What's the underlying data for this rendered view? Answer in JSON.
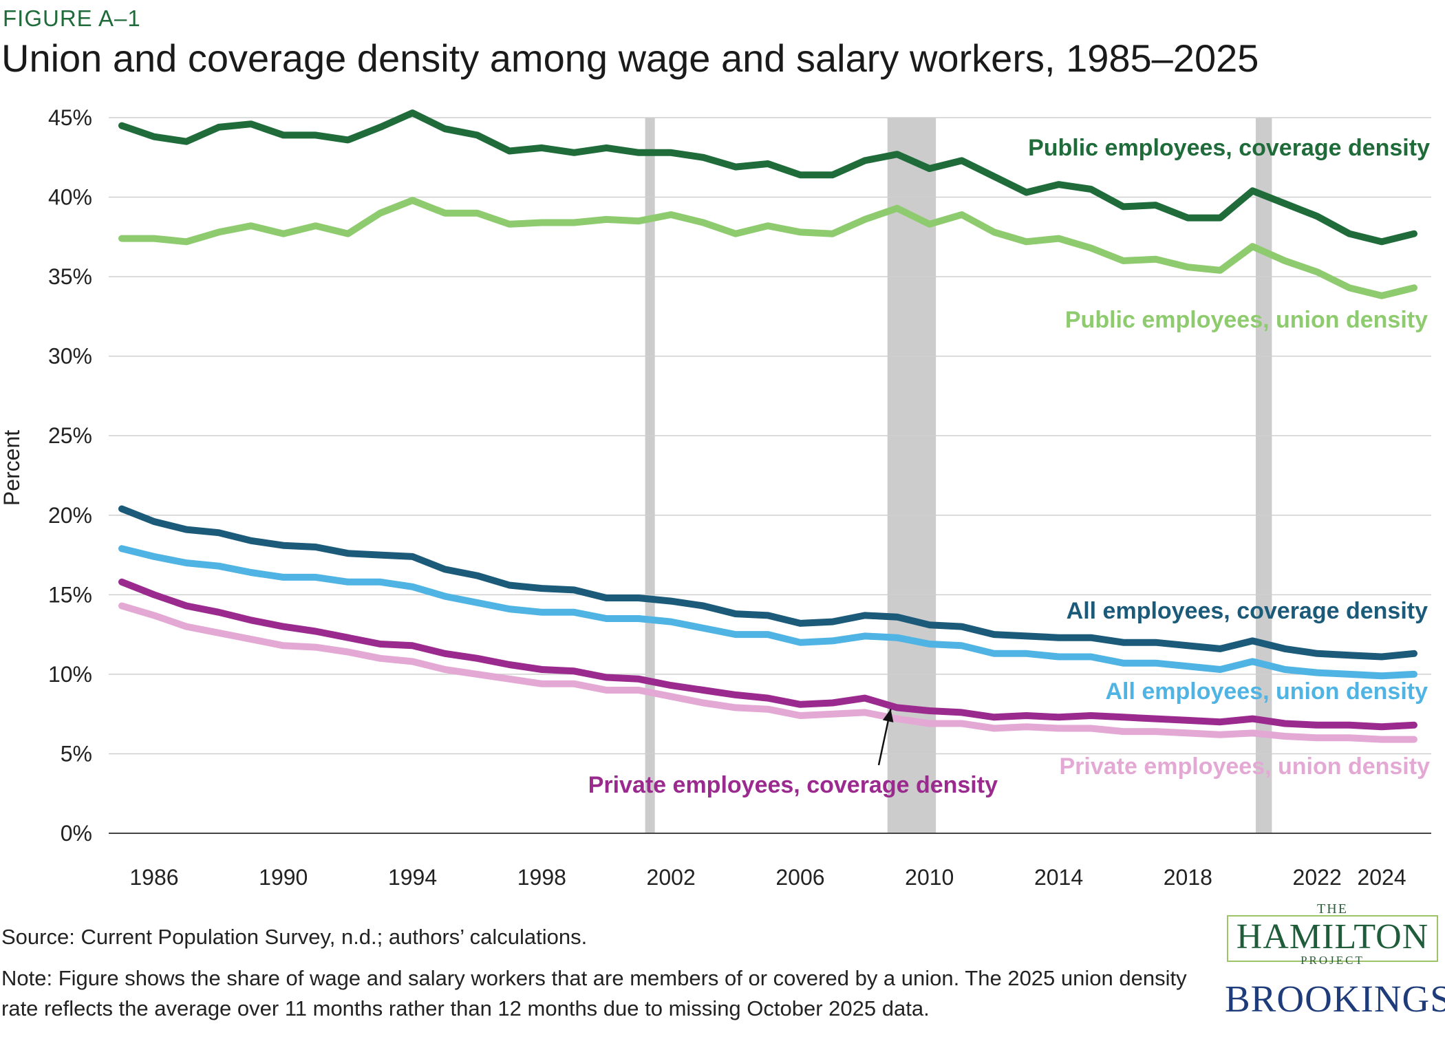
{
  "figure_label": "FIGURE A–1",
  "title": "Union and coverage density among wage and salary workers, 1985–2025",
  "source": "Source: Current Population Survey, n.d.; authors’ calculations.",
  "note": "Note: Figure shows the share of wage and salary workers that are members of or covered by a union. The 2025 union density rate reflects the average over 11 months rather than 12 months due to missing October 2025 data.",
  "logos": {
    "hamilton_the": "THE",
    "hamilton_name": "HAMILTON",
    "hamilton_project": "PROJECT",
    "brookings": "BROOKINGS"
  },
  "chart_data": {
    "type": "line",
    "ylabel": "Percent",
    "ylim": [
      0,
      45
    ],
    "yticks": [
      0,
      5,
      10,
      15,
      20,
      25,
      30,
      35,
      40,
      45
    ],
    "ytick_labels": [
      "0%",
      "5%",
      "10%",
      "15%",
      "20%",
      "25%",
      "30%",
      "35%",
      "40%",
      "45%"
    ],
    "xlim": [
      1985,
      2025
    ],
    "xticks": [
      1986,
      1990,
      1994,
      1998,
      2002,
      2006,
      2010,
      2014,
      2018,
      2022,
      2024
    ],
    "grid": "horizontal",
    "x": [
      1985,
      1986,
      1987,
      1988,
      1989,
      1990,
      1991,
      1992,
      1993,
      1994,
      1995,
      1996,
      1997,
      1998,
      1999,
      2000,
      2001,
      2002,
      2003,
      2004,
      2005,
      2006,
      2007,
      2008,
      2009,
      2010,
      2011,
      2012,
      2013,
      2014,
      2015,
      2016,
      2017,
      2018,
      2019,
      2020,
      2021,
      2022,
      2023,
      2024,
      2025
    ],
    "recessions": [
      [
        2001.2,
        2001.5
      ],
      [
        2008.7,
        2010.2
      ],
      [
        2020.1,
        2020.6
      ]
    ],
    "series": [
      {
        "name": "Public employees, coverage density",
        "color": "#1f6b3a",
        "values": [
          44.5,
          43.8,
          43.5,
          44.4,
          44.6,
          43.9,
          43.9,
          43.6,
          44.4,
          45.3,
          44.3,
          43.9,
          42.9,
          43.1,
          42.8,
          43.1,
          42.8,
          42.8,
          42.5,
          41.9,
          42.1,
          41.4,
          41.4,
          42.3,
          42.7,
          41.8,
          42.3,
          41.3,
          40.3,
          40.8,
          40.5,
          39.4,
          39.5,
          38.7,
          38.7,
          40.4,
          39.6,
          38.8,
          37.7,
          37.2,
          37.7
        ]
      },
      {
        "name": "Public employees, union density",
        "color": "#8ecb6e",
        "values": [
          37.4,
          37.4,
          37.2,
          37.8,
          38.2,
          37.7,
          38.2,
          37.7,
          39.0,
          39.8,
          39.0,
          39.0,
          38.3,
          38.4,
          38.4,
          38.6,
          38.5,
          38.9,
          38.4,
          37.7,
          38.2,
          37.8,
          37.7,
          38.6,
          39.3,
          38.3,
          38.9,
          37.8,
          37.2,
          37.4,
          36.8,
          36.0,
          36.1,
          35.6,
          35.4,
          36.9,
          36.0,
          35.3,
          34.3,
          33.8,
          34.3
        ]
      },
      {
        "name": "All employees, coverage density",
        "color": "#1c5a7a",
        "values": [
          20.4,
          19.6,
          19.1,
          18.9,
          18.4,
          18.1,
          18.0,
          17.6,
          17.5,
          17.4,
          16.6,
          16.2,
          15.6,
          15.4,
          15.3,
          14.8,
          14.8,
          14.6,
          14.3,
          13.8,
          13.7,
          13.2,
          13.3,
          13.7,
          13.6,
          13.1,
          13.0,
          12.5,
          12.4,
          12.3,
          12.3,
          12.0,
          12.0,
          11.8,
          11.6,
          12.1,
          11.6,
          11.3,
          11.2,
          11.1,
          11.3
        ]
      },
      {
        "name": "All employees, union density",
        "color": "#4fb3e3",
        "values": [
          17.9,
          17.4,
          17.0,
          16.8,
          16.4,
          16.1,
          16.1,
          15.8,
          15.8,
          15.5,
          14.9,
          14.5,
          14.1,
          13.9,
          13.9,
          13.5,
          13.5,
          13.3,
          12.9,
          12.5,
          12.5,
          12.0,
          12.1,
          12.4,
          12.3,
          11.9,
          11.8,
          11.3,
          11.3,
          11.1,
          11.1,
          10.7,
          10.7,
          10.5,
          10.3,
          10.8,
          10.3,
          10.1,
          10.0,
          9.9,
          10.0
        ]
      },
      {
        "name": "Private employees, coverage density",
        "color": "#9b2a8f",
        "values": [
          15.8,
          15.0,
          14.3,
          13.9,
          13.4,
          13.0,
          12.7,
          12.3,
          11.9,
          11.8,
          11.3,
          11.0,
          10.6,
          10.3,
          10.2,
          9.8,
          9.7,
          9.3,
          9.0,
          8.7,
          8.5,
          8.1,
          8.2,
          8.5,
          7.9,
          7.7,
          7.6,
          7.3,
          7.4,
          7.3,
          7.4,
          7.3,
          7.2,
          7.1,
          7.0,
          7.2,
          6.9,
          6.8,
          6.8,
          6.7,
          6.8
        ]
      },
      {
        "name": "Private employees, union density",
        "color": "#e3a9d4",
        "values": [
          14.3,
          13.7,
          13.0,
          12.6,
          12.2,
          11.8,
          11.7,
          11.4,
          11.0,
          10.8,
          10.3,
          10.0,
          9.7,
          9.4,
          9.4,
          9.0,
          9.0,
          8.6,
          8.2,
          7.9,
          7.8,
          7.4,
          7.5,
          7.6,
          7.2,
          6.9,
          6.9,
          6.6,
          6.7,
          6.6,
          6.6,
          6.4,
          6.4,
          6.3,
          6.2,
          6.3,
          6.1,
          6.0,
          6.0,
          5.9,
          5.9
        ]
      }
    ],
    "annotations": [
      {
        "text": "Public employees, coverage density",
        "color": "#1f6b3a"
      },
      {
        "text": "Public employees, union density",
        "color": "#8ecb6e"
      },
      {
        "text": "All employees, coverage density",
        "color": "#1c5a7a"
      },
      {
        "text": "All employees, union density",
        "color": "#4fb3e3"
      },
      {
        "text": "Private employees, coverage density",
        "color": "#9b2a8f"
      },
      {
        "text": "Private employees, union density",
        "color": "#e3a9d4"
      }
    ]
  }
}
